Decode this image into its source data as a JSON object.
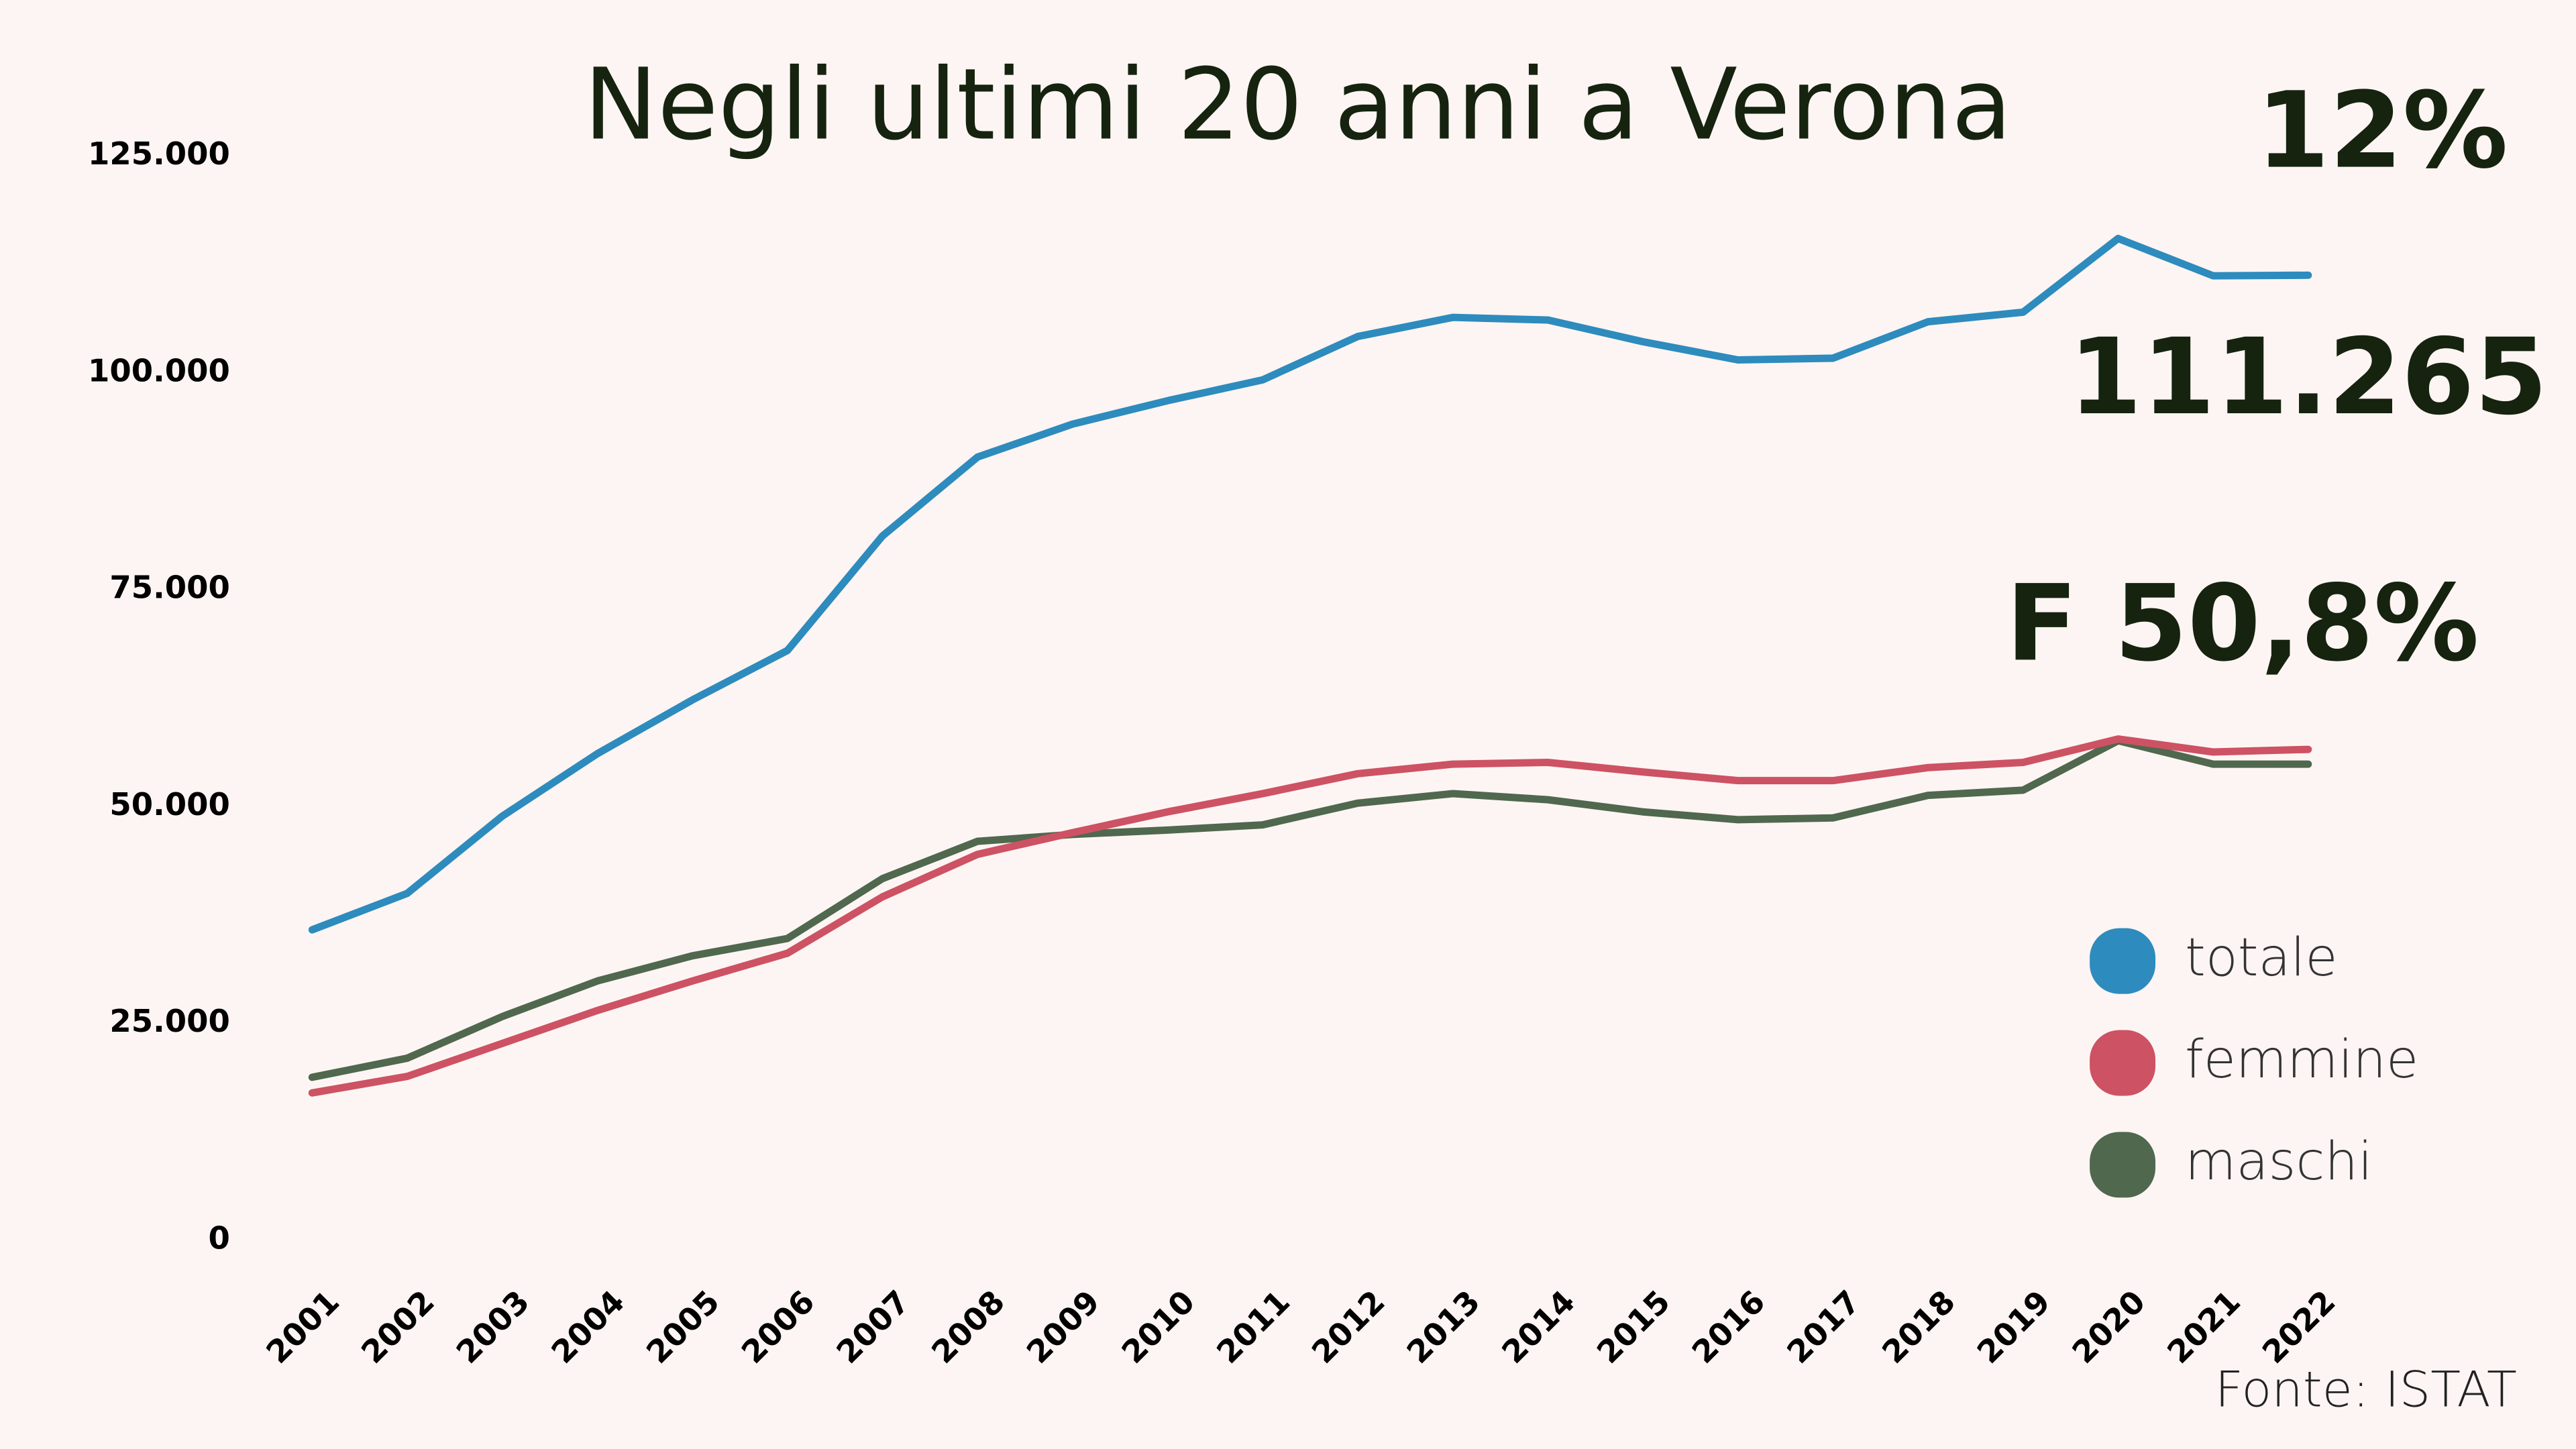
{
  "chart_data": {
    "type": "line",
    "title": "Negli ultimi 20 anni a Verona",
    "annotations": [
      "12%",
      "111.265",
      "F 50,8%"
    ],
    "source": "Fonte: ISTAT",
    "categories": [
      "2001",
      "2002",
      "2003",
      "2004",
      "2005",
      "2006",
      "2007",
      "2008",
      "2009",
      "2010",
      "2011",
      "2012",
      "2013",
      "2014",
      "2015",
      "2016",
      "2017",
      "2018",
      "2019",
      "2020",
      "2021",
      "2022"
    ],
    "series": [
      {
        "name": "totale",
        "color": "#2e8bbd",
        "values": [
          35800,
          40000,
          48900,
          56100,
          62300,
          68000,
          81200,
          90300,
          94100,
          96800,
          99200,
          104200,
          106400,
          106100,
          103600,
          101500,
          101700,
          105900,
          107000,
          115500,
          111200,
          111265
        ]
      },
      {
        "name": "femmine",
        "color": "#cd5263",
        "values": [
          17000,
          18900,
          22700,
          26500,
          29900,
          33100,
          39600,
          44500,
          47000,
          49400,
          51500,
          53800,
          54900,
          55100,
          54000,
          53000,
          53000,
          54500,
          55100,
          57800,
          56300,
          56600
        ]
      },
      {
        "name": "maschi",
        "color": "#50684e",
        "values": [
          18800,
          21000,
          25800,
          29900,
          32800,
          34800,
          41700,
          46000,
          46800,
          47300,
          47900,
          50400,
          51500,
          50800,
          49400,
          48500,
          48700,
          51300,
          51900,
          57600,
          54900,
          54900
        ]
      }
    ],
    "ylim": [
      0,
      125000
    ],
    "yticks": [
      0,
      {
        "value": 25000,
        "label": "25.000"
      },
      {
        "value": 50000,
        "label": "50.000"
      },
      {
        "value": 75000,
        "label": "75.000"
      },
      {
        "value": 100000,
        "label": "100.000"
      },
      {
        "value": 125000,
        "label": "125.000"
      }
    ],
    "grid": false
  }
}
